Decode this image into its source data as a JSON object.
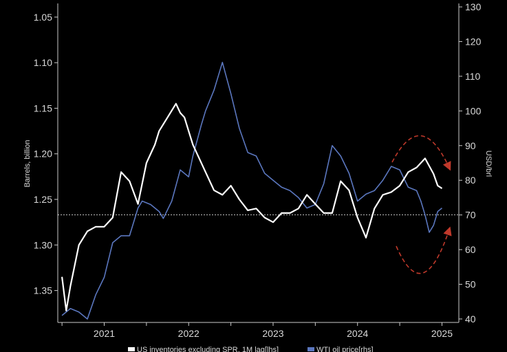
{
  "chart_data": {
    "type": "line",
    "left_axis": {
      "label": "Barrels, billion",
      "inverted": true,
      "ylim": [
        1.035,
        1.385
      ],
      "ticks": [
        "1.05",
        "1.10",
        "1.15",
        "1.20",
        "1.25",
        "1.30",
        "1.35"
      ],
      "tick_values": [
        1.05,
        1.1,
        1.15,
        1.2,
        1.25,
        1.3,
        1.35
      ]
    },
    "right_axis": {
      "label": "USD/brl",
      "ylim": [
        39,
        131
      ],
      "ticks": [
        "130",
        "120",
        "110",
        "100",
        "90",
        "80",
        "70",
        "60",
        "50",
        "40"
      ],
      "tick_values": [
        130,
        120,
        110,
        100,
        90,
        80,
        70,
        60,
        50,
        40
      ]
    },
    "x_axis": {
      "xlim": [
        2020.45,
        2025.2
      ],
      "ticks": [
        "2021",
        "2022",
        "2023",
        "2024",
        "2025"
      ],
      "tick_values": [
        2021,
        2022,
        2023,
        2024,
        2025
      ]
    },
    "reference_line": {
      "axis": "right",
      "value": 70,
      "style": "dashed",
      "color": "#ffffff"
    },
    "annotations": [
      {
        "type": "dashed-arc-arrow",
        "color": "#c0392b",
        "direction": "down-right"
      },
      {
        "type": "dashed-arc-arrow",
        "color": "#c0392b",
        "direction": "up-right"
      }
    ],
    "series": [
      {
        "name": "US inventories excluding SPR, 1M lag[lhs]",
        "axis": "left",
        "color": "#ffffff",
        "x": [
          2020.5,
          2020.55,
          2020.6,
          2020.7,
          2020.8,
          2020.9,
          2021.0,
          2021.1,
          2021.2,
          2021.3,
          2021.4,
          2021.5,
          2021.6,
          2021.65,
          2021.75,
          2021.85,
          2021.9,
          2021.95,
          2022.0,
          2022.05,
          2022.1,
          2022.2,
          2022.3,
          2022.4,
          2022.5,
          2022.6,
          2022.7,
          2022.8,
          2022.9,
          2023.0,
          2023.1,
          2023.2,
          2023.3,
          2023.4,
          2023.5,
          2023.6,
          2023.7,
          2023.8,
          2023.9,
          2024.0,
          2024.1,
          2024.2,
          2024.3,
          2024.4,
          2024.5,
          2024.6,
          2024.7,
          2024.8,
          2024.9,
          2024.95,
          2025.0
        ],
        "y": [
          1.335,
          1.372,
          1.345,
          1.3,
          1.285,
          1.28,
          1.28,
          1.27,
          1.22,
          1.23,
          1.255,
          1.21,
          1.19,
          1.175,
          1.16,
          1.145,
          1.155,
          1.16,
          1.175,
          1.19,
          1.2,
          1.22,
          1.24,
          1.245,
          1.235,
          1.25,
          1.262,
          1.26,
          1.27,
          1.275,
          1.265,
          1.265,
          1.26,
          1.245,
          1.255,
          1.265,
          1.265,
          1.23,
          1.24,
          1.27,
          1.292,
          1.26,
          1.245,
          1.242,
          1.235,
          1.22,
          1.215,
          1.205,
          1.222,
          1.235,
          1.238
        ]
      },
      {
        "name": "WTI oil price[rhs]",
        "axis": "right",
        "color": "#5b77bf",
        "x": [
          2020.5,
          2020.6,
          2020.7,
          2020.8,
          2020.9,
          2021.0,
          2021.1,
          2021.2,
          2021.3,
          2021.4,
          2021.45,
          2021.55,
          2021.65,
          2021.7,
          2021.8,
          2021.9,
          2022.0,
          2022.05,
          2022.15,
          2022.2,
          2022.3,
          2022.4,
          2022.5,
          2022.6,
          2022.7,
          2022.8,
          2022.9,
          2023.0,
          2023.1,
          2023.2,
          2023.3,
          2023.4,
          2023.5,
          2023.6,
          2023.7,
          2023.8,
          2023.9,
          2024.0,
          2024.1,
          2024.2,
          2024.3,
          2024.4,
          2024.5,
          2024.6,
          2024.7,
          2024.75,
          2024.8,
          2024.85,
          2024.9,
          2024.95,
          2025.0
        ],
        "y": [
          41,
          43,
          42,
          40,
          47,
          52,
          62,
          64,
          64,
          72,
          74,
          73,
          71,
          69,
          74,
          83,
          81,
          87,
          96,
          100,
          106,
          114,
          105,
          95,
          88,
          87,
          82,
          80,
          78,
          77,
          75,
          72,
          73,
          79,
          90,
          87,
          82,
          74,
          76,
          77,
          80,
          84,
          83,
          78,
          77,
          74,
          70,
          65,
          67,
          71,
          72
        ]
      }
    ]
  }
}
